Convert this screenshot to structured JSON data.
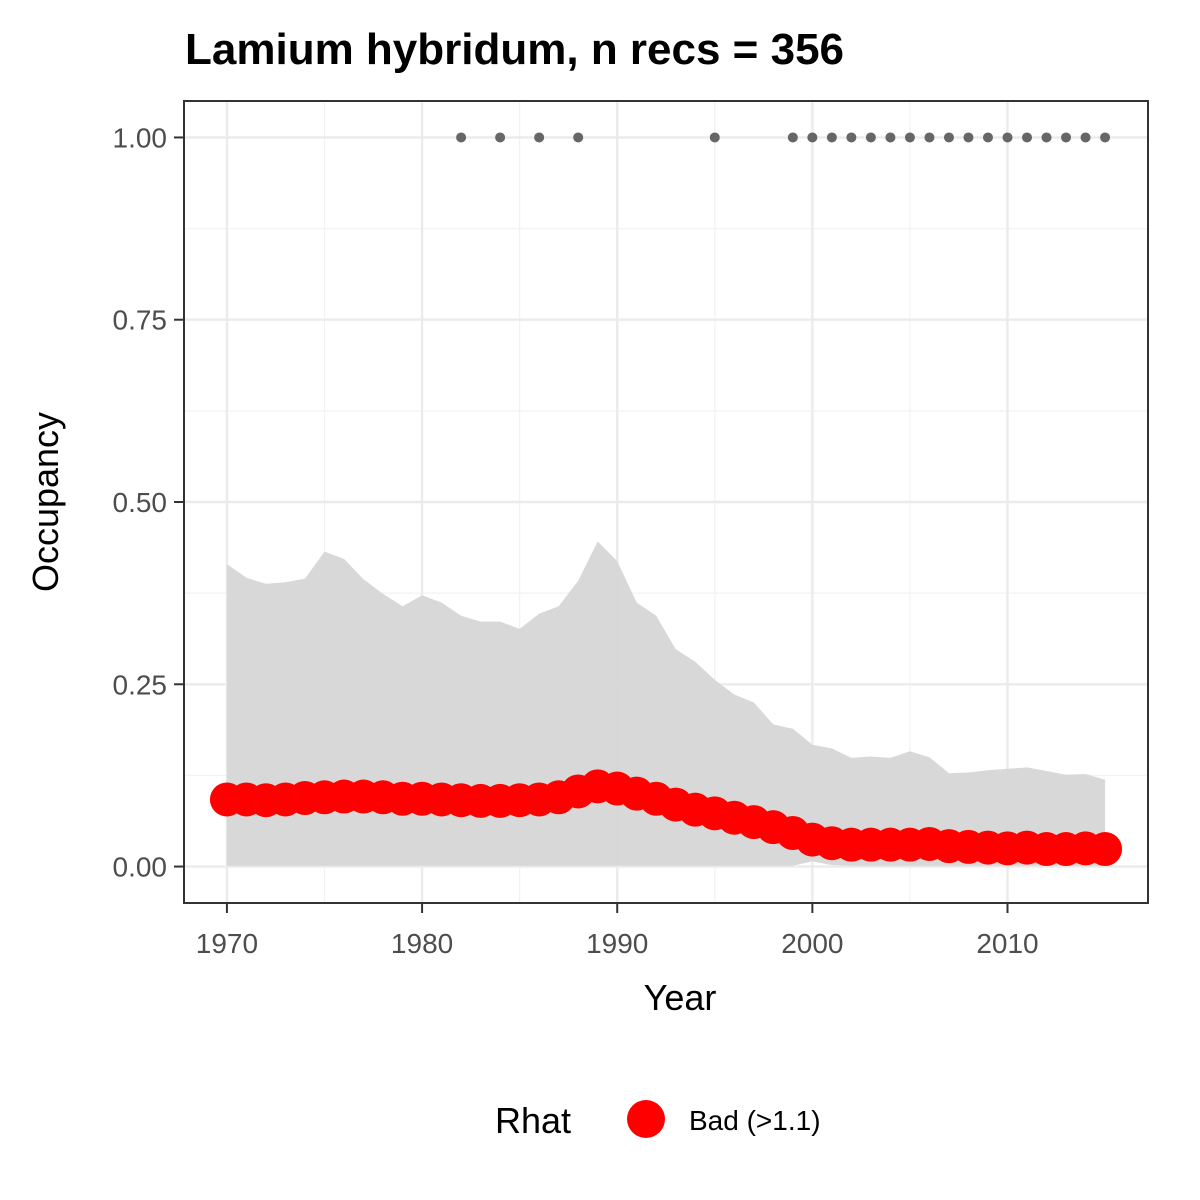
{
  "chart_data": {
    "type": "line",
    "title": "Lamium hybridum, n recs = 356",
    "xlabel": "Year",
    "ylabel": "Occupancy",
    "xlim": [
      1967.8,
      2017.2
    ],
    "ylim": [
      -0.05,
      1.05
    ],
    "x_ticks": [
      1970,
      1980,
      1990,
      2000,
      2010
    ],
    "x_tick_labels": [
      "1970",
      "1980",
      "1990",
      "2000",
      "2010"
    ],
    "y_ticks": [
      0,
      0.25,
      0.5,
      0.75,
      1
    ],
    "y_tick_labels": [
      "0.00",
      "0.25",
      "0.50",
      "0.75",
      "1.00"
    ],
    "grid": true,
    "legend": {
      "title": "Rhat",
      "position": "bottom",
      "entries": [
        {
          "label": "Bad (>1.1)",
          "color": "#ff0000"
        }
      ]
    },
    "colors": {
      "series": "#ff0000",
      "ribbon": "#d6d6d6",
      "observed": "#666666"
    },
    "series": [
      {
        "x": [
          1970,
          1971,
          1972,
          1973,
          1974,
          1975,
          1976,
          1977,
          1978,
          1979,
          1980,
          1981,
          1982,
          1983,
          1984,
          1985,
          1986,
          1987,
          1988,
          1989,
          1990,
          1991,
          1992,
          1993,
          1994,
          1995,
          1996,
          1997,
          1998,
          1999,
          2000,
          2001,
          2002,
          2003,
          2004,
          2005,
          2006,
          2007,
          2008,
          2009,
          2010,
          2011,
          2012,
          2013,
          2014,
          2015
        ],
        "values": [
          0.092,
          0.092,
          0.091,
          0.092,
          0.094,
          0.095,
          0.096,
          0.096,
          0.095,
          0.093,
          0.093,
          0.092,
          0.091,
          0.09,
          0.09,
          0.091,
          0.092,
          0.095,
          0.103,
          0.11,
          0.107,
          0.1,
          0.093,
          0.085,
          0.078,
          0.073,
          0.067,
          0.061,
          0.054,
          0.046,
          0.037,
          0.032,
          0.03,
          0.03,
          0.03,
          0.03,
          0.031,
          0.028,
          0.027,
          0.026,
          0.025,
          0.026,
          0.024,
          0.024,
          0.025,
          0.024
        ],
        "lower": [
          0.001,
          0.001,
          0.001,
          0.001,
          0.001,
          0.001,
          0.001,
          0.001,
          0.001,
          0.001,
          0.001,
          0.001,
          0.001,
          0.001,
          0.001,
          0.001,
          0.001,
          0.001,
          0.001,
          0.001,
          0.001,
          0.001,
          0.001,
          0.001,
          0.001,
          0.001,
          0.001,
          0.001,
          0.001,
          0.001,
          0.007,
          0.002,
          0.001,
          0.001,
          0.001,
          0.001,
          0.001,
          0.001,
          0.001,
          0.001,
          0.001,
          0.001,
          0.001,
          0.001,
          0.001,
          0.001
        ],
        "upper": [
          0.415,
          0.396,
          0.388,
          0.39,
          0.395,
          0.432,
          0.422,
          0.394,
          0.374,
          0.357,
          0.372,
          0.362,
          0.344,
          0.336,
          0.336,
          0.326,
          0.347,
          0.357,
          0.392,
          0.446,
          0.419,
          0.362,
          0.344,
          0.298,
          0.281,
          0.256,
          0.236,
          0.225,
          0.195,
          0.189,
          0.167,
          0.162,
          0.149,
          0.151,
          0.149,
          0.158,
          0.15,
          0.128,
          0.129,
          0.132,
          0.134,
          0.136,
          0.131,
          0.126,
          0.127,
          0.119
        ]
      }
    ],
    "observed_points": {
      "x": [
        1982,
        1984,
        1986,
        1988,
        1995,
        1999,
        2000,
        2001,
        2002,
        2003,
        2004,
        2005,
        2006,
        2007,
        2008,
        2009,
        2010,
        2011,
        2012,
        2013,
        2014,
        2015
      ],
      "values": [
        1,
        1,
        1,
        1,
        1,
        1,
        1,
        1,
        1,
        1,
        1,
        1,
        1,
        1,
        1,
        1,
        1,
        1,
        1,
        1,
        1,
        1
      ]
    }
  }
}
